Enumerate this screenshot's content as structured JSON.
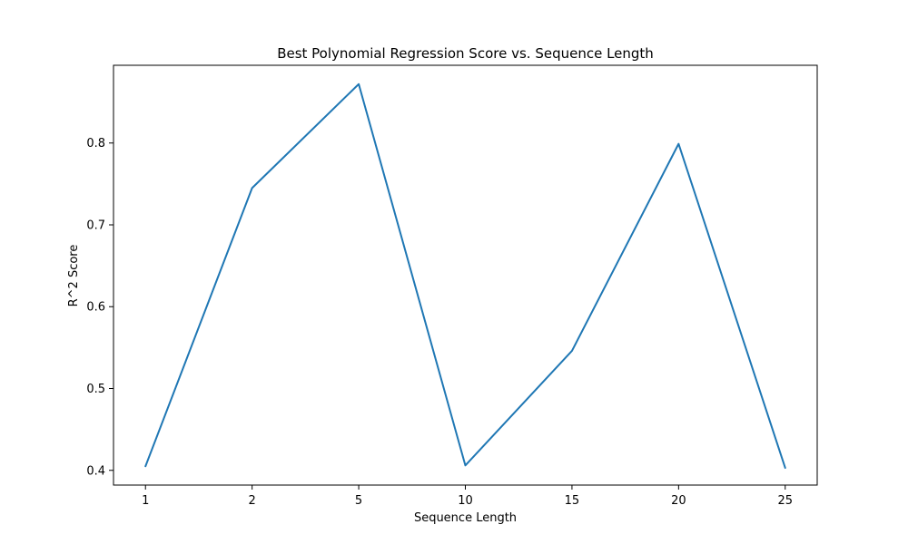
{
  "chart_data": {
    "type": "line",
    "title": "Best Polynomial Regression Score vs. Sequence Length",
    "xlabel": "Sequence Length",
    "ylabel": "R^2 Score",
    "categories": [
      "1",
      "2",
      "5",
      "10",
      "15",
      "20",
      "25"
    ],
    "series": [
      {
        "values": [
          0.405,
          0.745,
          0.872,
          0.406,
          0.546,
          0.799,
          0.403
        ]
      }
    ],
    "ylim": [
      0.382,
      0.895
    ],
    "yticks": [
      0.4,
      0.5,
      0.6,
      0.7,
      0.8
    ],
    "ytick_labels": [
      "0.4",
      "0.5",
      "0.6",
      "0.7",
      "0.8"
    ],
    "grid": false,
    "legend": "none",
    "colors": {
      "series": "#1f77b4",
      "axes": "#000000"
    }
  }
}
